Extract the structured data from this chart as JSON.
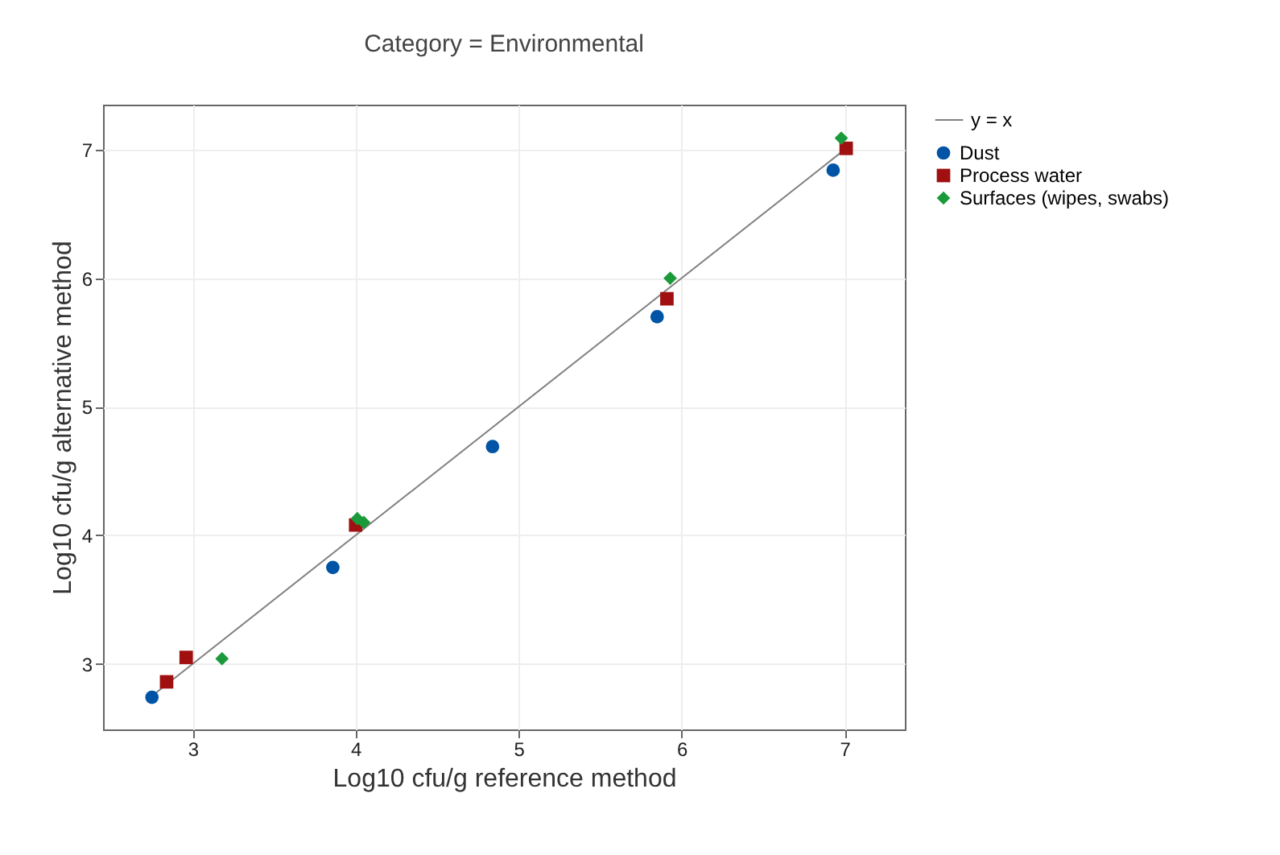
{
  "chart_data": {
    "type": "scatter",
    "title": "Category = Environmental",
    "xlabel": "Log10 cfu/g reference method",
    "ylabel": "Log10 cfu/g alternative method",
    "xlim": [
      2.45,
      7.37
    ],
    "xticks": [
      3,
      4,
      5,
      6,
      7
    ],
    "ylim": [
      2.49,
      7.35
    ],
    "yticks": [
      3,
      4,
      5,
      6,
      7
    ],
    "grid": true,
    "legend": "right",
    "series": [
      {
        "name": "y = x",
        "type": "line",
        "color": "#808080",
        "marker": "none",
        "x": [
          2.75,
          7.0
        ],
        "values": [
          2.75,
          7.0
        ]
      },
      {
        "name": "Dust",
        "color": "#0054a6",
        "marker": "circle",
        "x": [
          2.75,
          3.86,
          4.84,
          5.85,
          6.93
        ],
        "values": [
          2.74,
          3.75,
          4.69,
          5.7,
          6.84
        ]
      },
      {
        "name": "Process water",
        "color": "#a01010",
        "marker": "square",
        "x": [
          2.84,
          2.96,
          4.0,
          5.91,
          7.01
        ],
        "values": [
          2.86,
          3.05,
          4.08,
          5.84,
          7.01
        ]
      },
      {
        "name": "Surfaces (wipes, swabs)",
        "color": "#1a9a3a",
        "marker": "diamond",
        "x": [
          3.18,
          4.01,
          4.05,
          5.93,
          6.98
        ],
        "values": [
          3.04,
          4.13,
          4.1,
          6.0,
          7.09
        ]
      }
    ]
  }
}
